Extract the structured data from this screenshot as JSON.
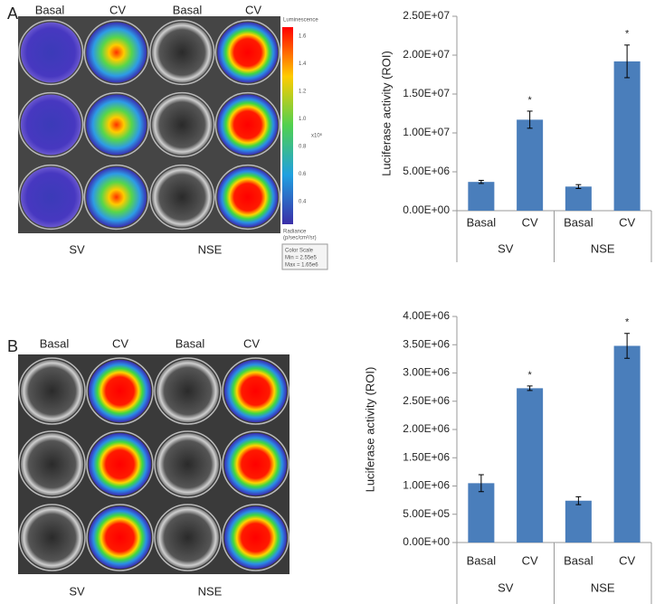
{
  "panels": [
    {
      "label": "A",
      "top_labels": [
        "Basal",
        "CV",
        "Basal",
        "CV"
      ],
      "bottom_labels": [
        "SV",
        "NSE"
      ],
      "scale": {
        "title": "Luminescence",
        "ticks": [
          "1.6",
          "1.4",
          "1.2",
          "1.0",
          "0.8",
          "0.6",
          "0.4"
        ],
        "unit": "x10⁶",
        "caption": [
          "Radiance",
          "(p/sec/cm²/sr)"
        ],
        "box": [
          "Color Scale",
          "Min = 2.55e5",
          "Max = 1.65e6"
        ]
      }
    },
    {
      "label": "B",
      "top_labels": [
        "Basal",
        "CV",
        "Basal",
        "CV"
      ],
      "bottom_labels": [
        "SV",
        "NSE"
      ]
    }
  ],
  "chart_data": [
    {
      "type": "bar",
      "y_label": "Luciferase activity (ROI)",
      "categories": [
        "Basal",
        "CV",
        "Basal",
        "CV"
      ],
      "groups": [
        "SV",
        "NSE"
      ],
      "values": [
        3700000,
        11700000,
        3100000,
        19200000
      ],
      "errors": [
        200000,
        1100000,
        250000,
        2100000
      ],
      "significance": [
        null,
        "*",
        null,
        "*"
      ],
      "color": "#4a7ebb",
      "ylim": [
        0,
        25000000
      ],
      "yticks": [
        {
          "value": 0,
          "label": "0.00E+00"
        },
        {
          "value": 5000000,
          "label": "5.00E+06"
        },
        {
          "value": 10000000,
          "label": "1.00E+07"
        },
        {
          "value": 15000000,
          "label": "1.50E+07"
        },
        {
          "value": 20000000,
          "label": "2.00E+07"
        },
        {
          "value": 25000000,
          "label": "2.50E+07"
        }
      ]
    },
    {
      "type": "bar",
      "y_label": "Luciferase activity (ROI)",
      "categories": [
        "Basal",
        "CV",
        "Basal",
        "CV"
      ],
      "groups": [
        "SV",
        "NSE"
      ],
      "values": [
        1050000,
        2730000,
        740000,
        3480000
      ],
      "errors": [
        150000,
        40000,
        70000,
        220000
      ],
      "significance": [
        null,
        "*",
        null,
        "*"
      ],
      "color": "#4a7ebb",
      "ylim": [
        0,
        4000000
      ],
      "yticks": [
        {
          "value": 0,
          "label": "0.00E+00"
        },
        {
          "value": 500000,
          "label": "5.00E+05"
        },
        {
          "value": 1000000,
          "label": "1.00E+06"
        },
        {
          "value": 1500000,
          "label": "1.50E+06"
        },
        {
          "value": 2000000,
          "label": "2.00E+06"
        },
        {
          "value": 2500000,
          "label": "2.50E+06"
        },
        {
          "value": 3000000,
          "label": "3.00E+06"
        },
        {
          "value": 3500000,
          "label": "3.50E+06"
        },
        {
          "value": 4000000,
          "label": "4.00E+06"
        }
      ]
    }
  ]
}
